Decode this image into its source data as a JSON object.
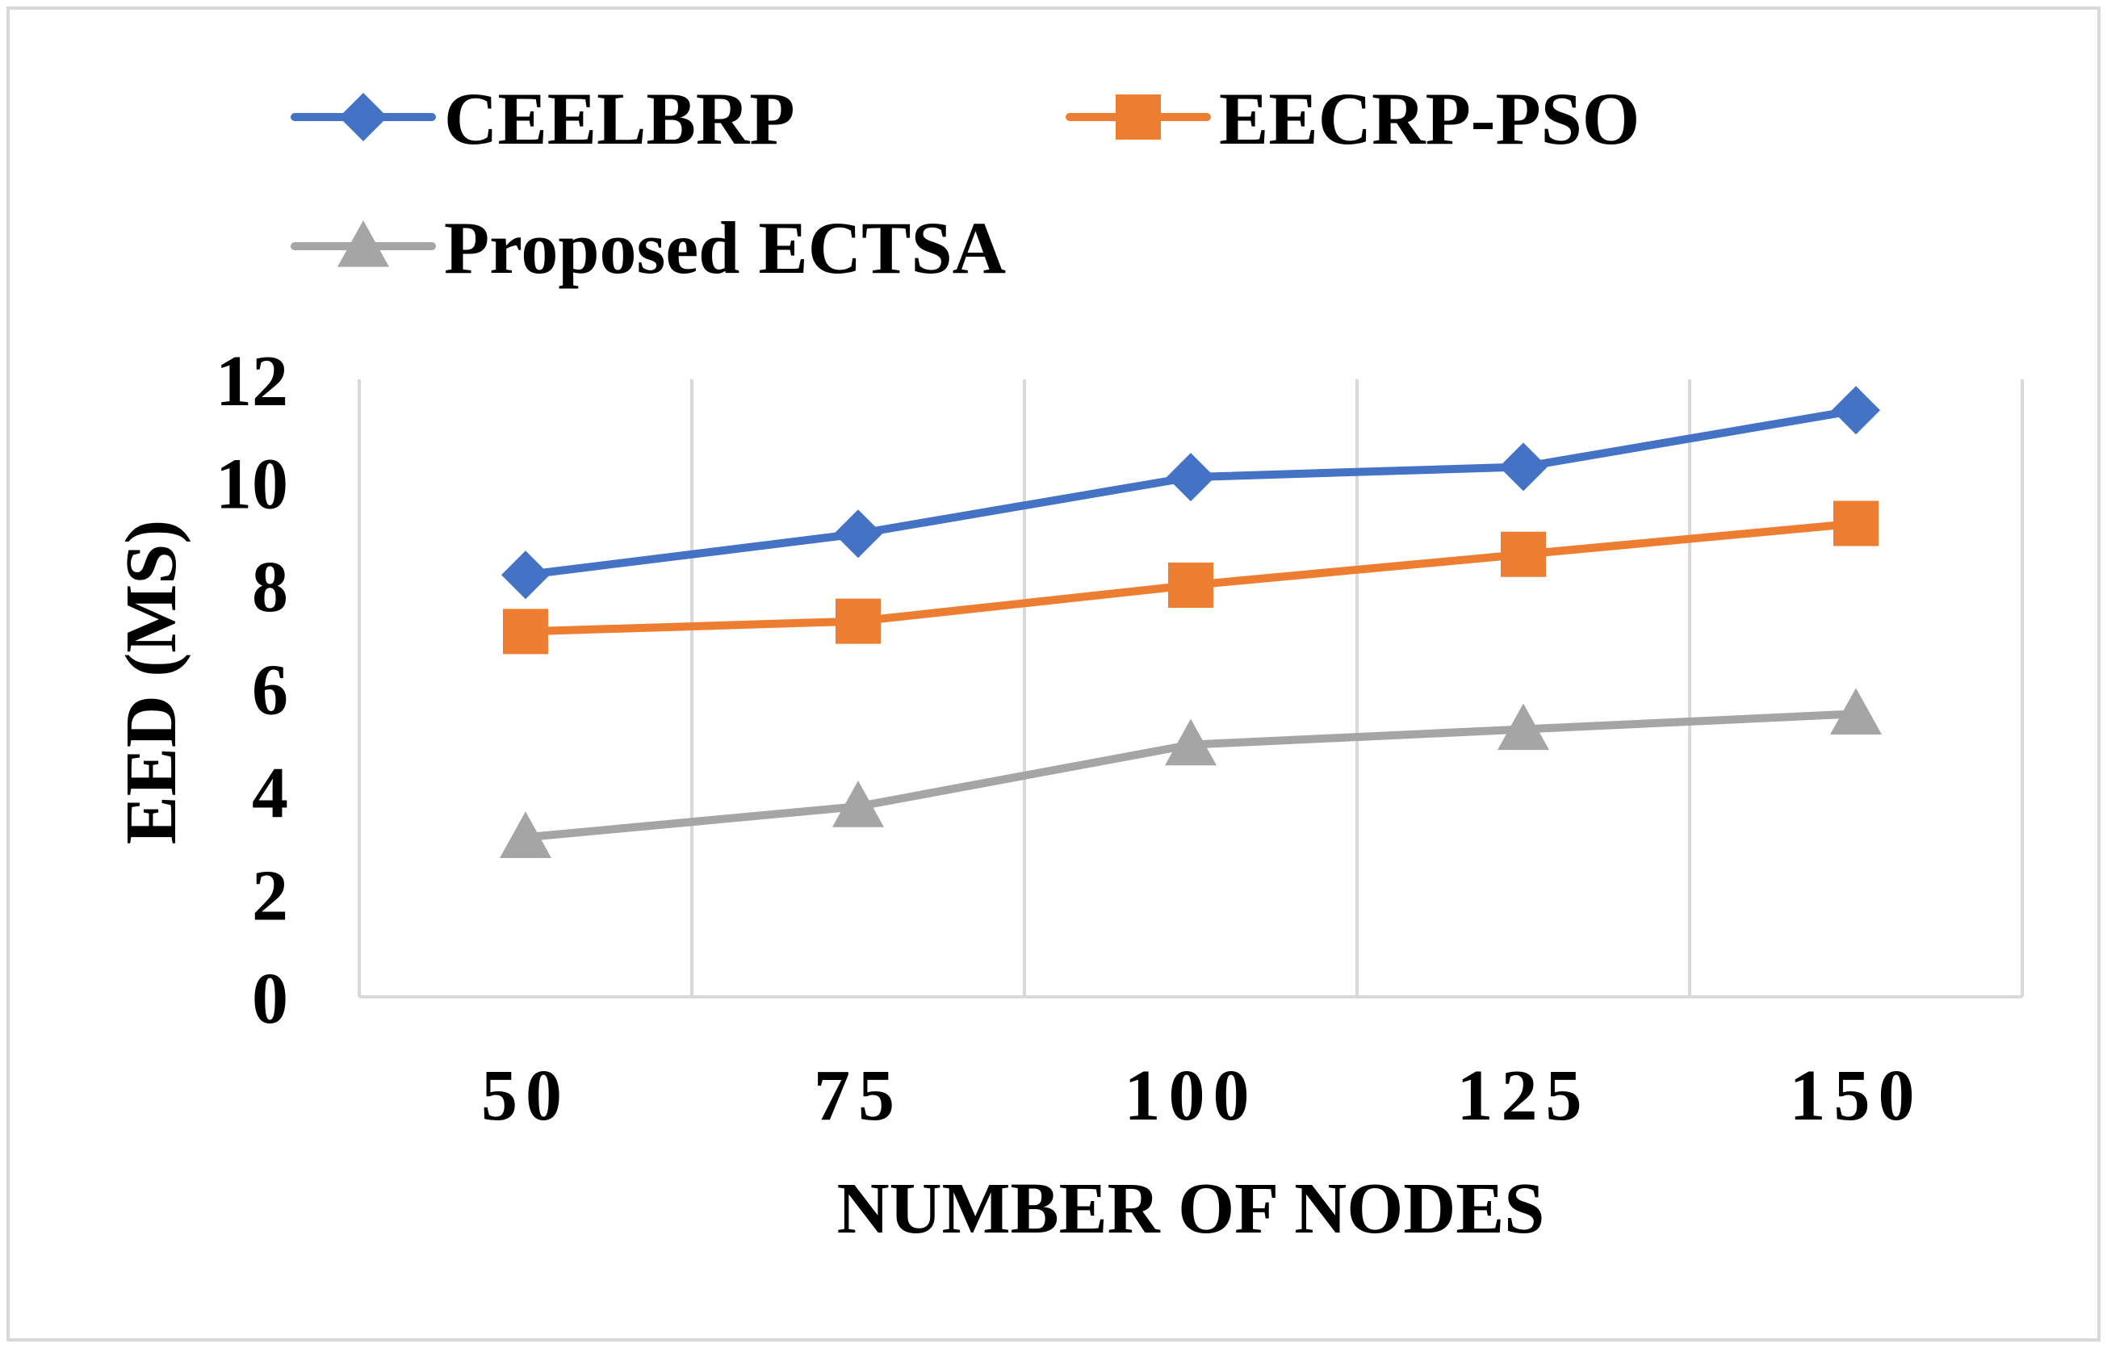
{
  "chart_data": {
    "type": "line",
    "title": "",
    "xlabel": "NUMBER OF NODES",
    "ylabel": "EED (MS)",
    "categories": [
      "50",
      "75",
      "100",
      "125",
      "150"
    ],
    "ylim": [
      0,
      12
    ],
    "yticks": [
      "0",
      "2",
      "4",
      "6",
      "8",
      "10",
      "12"
    ],
    "grid": "vertical",
    "legend_position": "top",
    "series": [
      {
        "name": "CEELBRP",
        "values": [
          8.2,
          9.0,
          10.1,
          10.3,
          11.4
        ],
        "color": "#4472C4",
        "marker": "diamond"
      },
      {
        "name": "EECRP-PSO",
        "values": [
          7.1,
          7.3,
          8.0,
          8.6,
          9.2
        ],
        "color": "#ED7D31",
        "marker": "square"
      },
      {
        "name": "Proposed ECTSA",
        "values": [
          3.1,
          3.7,
          4.9,
          5.2,
          5.5
        ],
        "color": "#A5A5A5",
        "marker": "triangle"
      }
    ]
  }
}
